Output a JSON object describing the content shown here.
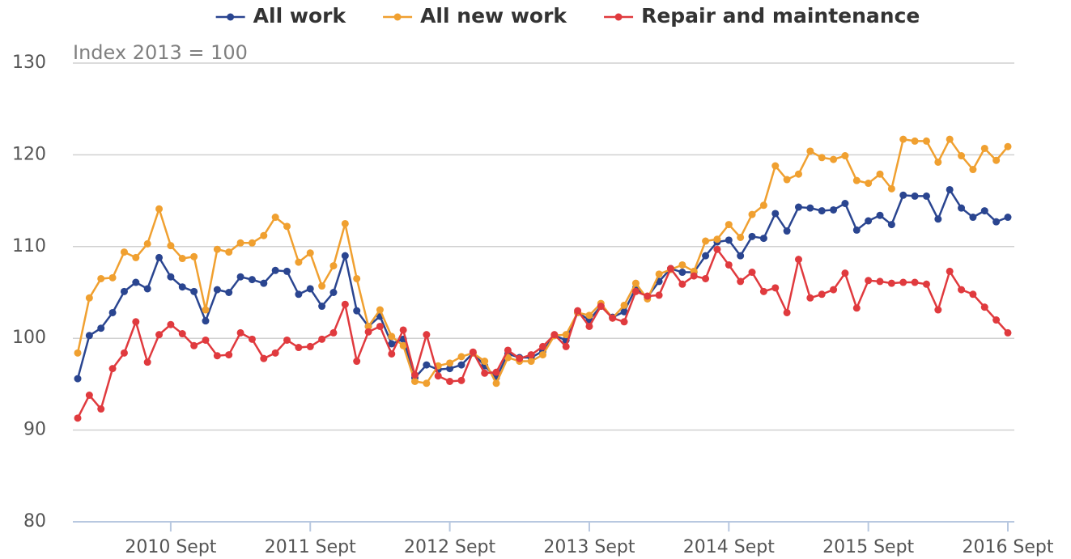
{
  "chart_data": {
    "type": "line",
    "annotation": "Index 2013 = 100",
    "categories": [
      null,
      null,
      null,
      null,
      null,
      null,
      null,
      null,
      "2010 Sept",
      null,
      null,
      null,
      null,
      null,
      null,
      null,
      null,
      null,
      null,
      null,
      "2011 Sept",
      null,
      null,
      null,
      null,
      null,
      null,
      null,
      null,
      null,
      null,
      null,
      "2012 Sept",
      null,
      null,
      null,
      null,
      null,
      null,
      null,
      null,
      null,
      null,
      null,
      "2013 Sept",
      null,
      null,
      null,
      null,
      null,
      null,
      null,
      null,
      null,
      null,
      null,
      "2014 Sept",
      null,
      null,
      null,
      null,
      null,
      null,
      null,
      null,
      null,
      null,
      null,
      "2015 Sept",
      null,
      null,
      null,
      null,
      null,
      null,
      null,
      null,
      null,
      null,
      null,
      "2016 Sept"
    ],
    "series": [
      {
        "name": "All work",
        "color": "#2a4590",
        "values": [
          95.6,
          100.3,
          101.1,
          102.8,
          105.1,
          106.1,
          105.4,
          108.8,
          106.7,
          105.6,
          105.1,
          101.9,
          105.3,
          105.0,
          106.7,
          106.4,
          106.0,
          107.4,
          107.3,
          104.8,
          105.4,
          103.5,
          105.0,
          109.0,
          103.0,
          101.3,
          102.4,
          99.4,
          99.9,
          95.7,
          97.1,
          96.6,
          96.7,
          97.1,
          98.4,
          97.0,
          95.7,
          98.3,
          97.9,
          97.9,
          98.6,
          100.3,
          99.8,
          102.8,
          102.0,
          103.5,
          102.3,
          102.9,
          105.5,
          104.5,
          106.2,
          107.6,
          107.2,
          107.2,
          109.0,
          110.5,
          110.7,
          109.0,
          111.1,
          110.9,
          113.6,
          111.7,
          114.3,
          114.2,
          113.9,
          114.0,
          114.7,
          111.8,
          112.8,
          113.4,
          112.4,
          115.6,
          115.5,
          115.5,
          113.0,
          116.2,
          114.2,
          113.2,
          113.9,
          112.7,
          113.2
        ]
      },
      {
        "name": "All new work",
        "color": "#f0a030",
        "values": [
          98.4,
          104.4,
          106.5,
          106.6,
          109.4,
          108.8,
          110.3,
          114.1,
          110.1,
          108.7,
          108.9,
          103.1,
          109.7,
          109.4,
          110.4,
          110.4,
          111.2,
          113.2,
          112.2,
          108.3,
          109.3,
          105.7,
          107.9,
          112.5,
          106.5,
          101.3,
          103.1,
          100.2,
          99.2,
          95.3,
          95.1,
          97.0,
          97.3,
          98.0,
          98.4,
          97.5,
          95.1,
          97.9,
          97.5,
          97.5,
          98.2,
          100.3,
          100.4,
          102.8,
          102.5,
          103.8,
          102.2,
          103.6,
          106.0,
          104.3,
          107.0,
          107.5,
          108.0,
          107.3,
          110.6,
          110.8,
          112.4,
          111.0,
          113.5,
          114.5,
          118.8,
          117.3,
          117.9,
          120.4,
          119.7,
          119.5,
          119.9,
          117.2,
          116.9,
          117.9,
          116.3,
          121.7,
          121.5,
          121.5,
          119.2,
          121.7,
          119.9,
          118.4,
          120.7,
          119.4,
          120.9
        ]
      },
      {
        "name": "Repair and maintenance",
        "color": "#e03a3e",
        "values": [
          91.3,
          93.8,
          92.3,
          96.7,
          98.4,
          101.8,
          97.4,
          100.4,
          101.5,
          100.5,
          99.2,
          99.8,
          98.1,
          98.2,
          100.6,
          99.9,
          97.8,
          98.4,
          99.8,
          99.0,
          99.1,
          99.9,
          100.6,
          103.7,
          97.5,
          100.7,
          101.3,
          98.3,
          100.9,
          96.0,
          100.4,
          95.9,
          95.3,
          95.4,
          98.5,
          96.2,
          96.3,
          98.7,
          97.8,
          98.2,
          99.1,
          100.4,
          99.1,
          103.0,
          101.3,
          103.5,
          102.2,
          101.8,
          105.1,
          104.6,
          104.7,
          107.6,
          105.9,
          106.8,
          106.5,
          109.7,
          108.0,
          106.2,
          107.2,
          105.1,
          105.5,
          102.8,
          108.6,
          104.4,
          104.8,
          105.3,
          107.1,
          103.3,
          106.3,
          106.2,
          106.0,
          106.1,
          106.1,
          105.9,
          103.1,
          107.3,
          105.3,
          104.8,
          103.4,
          102.0,
          100.6
        ]
      }
    ],
    "ylim": [
      80,
      130
    ],
    "yticks": [
      80,
      90,
      100,
      110,
      120,
      130
    ],
    "grid": true,
    "legend": "top"
  }
}
